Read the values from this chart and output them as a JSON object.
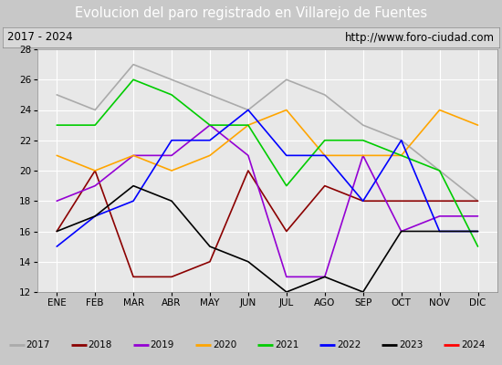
{
  "title": "Evolucion del paro registrado en Villarejo de Fuentes",
  "subtitle_left": "2017 - 2024",
  "subtitle_right": "http://www.foro-ciudad.com",
  "months": [
    "ENE",
    "FEB",
    "MAR",
    "ABR",
    "MAY",
    "JUN",
    "JUL",
    "AGO",
    "SEP",
    "OCT",
    "NOV",
    "DIC"
  ],
  "ylim": [
    12,
    28
  ],
  "yticks": [
    12,
    14,
    16,
    18,
    20,
    22,
    24,
    26,
    28
  ],
  "series": {
    "2017": {
      "color": "#aaaaaa",
      "data": [
        25,
        24,
        27,
        26,
        25,
        24,
        26,
        25,
        23,
        22,
        20,
        18
      ]
    },
    "2018": {
      "color": "#8b0000",
      "data": [
        16,
        20,
        13,
        13,
        14,
        20,
        16,
        19,
        18,
        18,
        18,
        18
      ]
    },
    "2019": {
      "color": "#9400d3",
      "data": [
        18,
        19,
        21,
        21,
        23,
        21,
        13,
        13,
        21,
        16,
        17,
        17
      ]
    },
    "2020": {
      "color": "#ffa500",
      "data": [
        21,
        20,
        21,
        20,
        21,
        23,
        24,
        21,
        21,
        21,
        24,
        23
      ]
    },
    "2021": {
      "color": "#00cc00",
      "data": [
        23,
        23,
        26,
        25,
        23,
        23,
        19,
        22,
        22,
        21,
        20,
        15
      ]
    },
    "2022": {
      "color": "#0000ff",
      "data": [
        15,
        17,
        18,
        22,
        22,
        24,
        21,
        21,
        18,
        22,
        16,
        16
      ]
    },
    "2023": {
      "color": "#000000",
      "data": [
        16,
        17,
        19,
        18,
        15,
        14,
        12,
        13,
        12,
        16,
        16,
        16
      ]
    },
    "2024": {
      "color": "#ff0000",
      "data": [
        18,
        null,
        null,
        null,
        null,
        null,
        null,
        null,
        null,
        null,
        null,
        null
      ]
    }
  },
  "title_bg_color": "#4f6fbe",
  "title_text_color": "#ffffff",
  "subtitle_bg_color": "#d8d8d8",
  "subtitle_text_color": "#000000",
  "plot_bg_color": "#e8e8e8",
  "grid_color": "#ffffff",
  "legend_bg_color": "#e8e8e8",
  "fig_bg_color": "#c8c8c8"
}
